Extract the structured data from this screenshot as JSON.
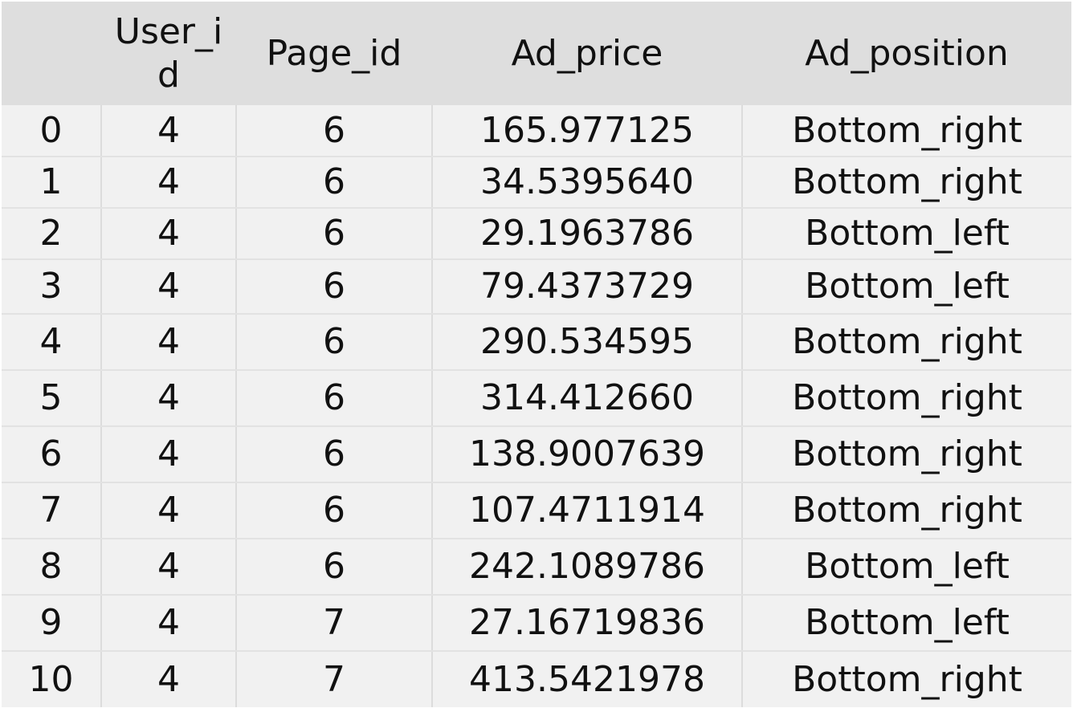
{
  "table": {
    "columns": [
      "",
      "User_id",
      "Page_id",
      "Ad_price",
      "Ad_position"
    ],
    "rows": [
      [
        "0",
        "4",
        "6",
        "165.977125",
        "Bottom_right"
      ],
      [
        "1",
        "4",
        "6",
        "34.5395640",
        "Bottom_right"
      ],
      [
        "2",
        "4",
        "6",
        "29.1963786",
        "Bottom_left"
      ],
      [
        "3",
        "4",
        "6",
        "79.4373729",
        "Bottom_left"
      ],
      [
        "4",
        "4",
        "6",
        "290.534595",
        "Bottom_right"
      ],
      [
        "5",
        "4",
        "6",
        "314.412660",
        "Bottom_right"
      ],
      [
        "6",
        "4",
        "6",
        "138.9007639",
        "Bottom_right"
      ],
      [
        "7",
        "4",
        "6",
        "107.4711914",
        "Bottom_right"
      ],
      [
        "8",
        "4",
        "6",
        "242.1089786",
        "Bottom_left"
      ],
      [
        "9",
        "4",
        "7",
        "27.16719836",
        "Bottom_left"
      ],
      [
        "10",
        "4",
        "7",
        "413.5421978",
        "Bottom_right"
      ]
    ]
  }
}
